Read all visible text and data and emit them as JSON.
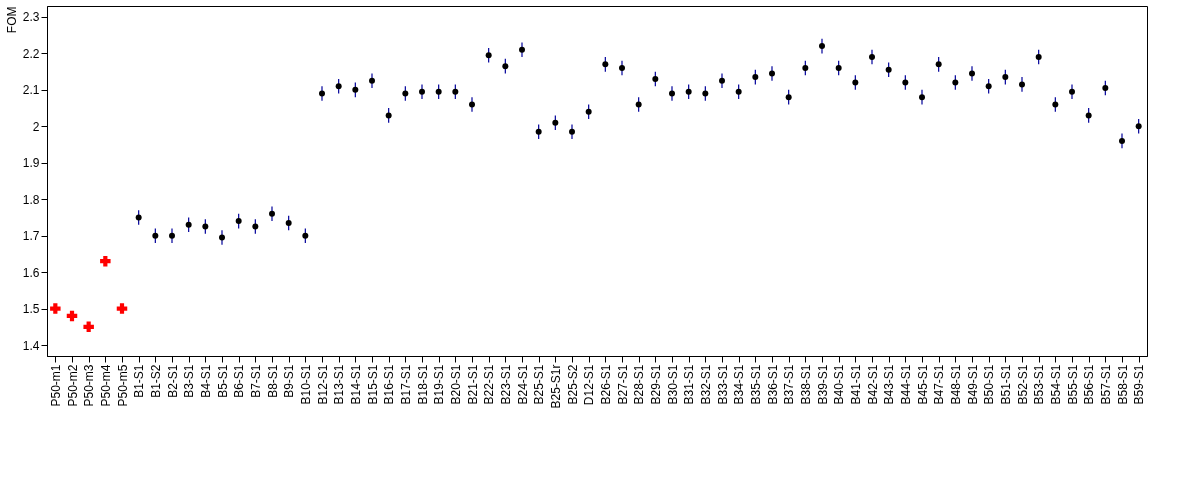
{
  "chart_data": {
    "type": "scatter",
    "ylabel": "FOM",
    "categories": [
      "P50-m1",
      "P50-m2",
      "P50-m3",
      "P50-m4",
      "P50-m5",
      "B1-S1",
      "B1-S2",
      "B2-S1",
      "B3-S1",
      "B4-S1",
      "B5-S1",
      "B6-S1",
      "B7-S1",
      "B8-S1",
      "B9-S1",
      "B10-S1",
      "B12-S1",
      "B13-S1",
      "B14-S1",
      "B15-S1",
      "B16-S1",
      "B17-S1",
      "B18-S1",
      "B19-S1",
      "B20-S1",
      "B21-S1",
      "B22-S1",
      "B23-S1",
      "B24-S1",
      "B25-S1",
      "B25-S1r",
      "B25-S2",
      "D12-S1",
      "B26-S1",
      "B27-S1",
      "B28-S1",
      "B29-S1",
      "B30-S1",
      "B31-S1",
      "B32-S1",
      "B33-S1",
      "B34-S1",
      "B35-S1",
      "B36-S1",
      "B37-S1",
      "B38-S1",
      "B39-S1",
      "B40-S1",
      "B41-S1",
      "B42-S1",
      "B43-S1",
      "B44-S1",
      "B45-S1",
      "B47-S1",
      "B48-S1",
      "B49-S1",
      "B50-S1",
      "B51-S1",
      "B52-S1",
      "B53-S1",
      "B54-S1",
      "B55-S1",
      "B56-S1",
      "B57-S1",
      "B58-S1",
      "B59-S1"
    ],
    "series": [
      {
        "color": "#ff0000",
        "marker": "cross",
        "values": [
          1.5,
          1.48,
          1.45,
          1.63,
          1.5,
          null,
          null,
          null,
          null,
          null,
          null,
          null,
          null,
          null,
          null,
          null,
          null,
          null,
          null,
          null,
          null,
          null,
          null,
          null,
          null,
          null,
          null,
          null,
          null,
          null,
          null,
          null,
          null,
          null,
          null,
          null,
          null,
          null,
          null,
          null,
          null,
          null,
          null,
          null,
          null,
          null,
          null,
          null,
          null,
          null,
          null,
          null,
          null,
          null,
          null,
          null,
          null,
          null,
          null,
          null,
          null,
          null,
          null,
          null,
          null,
          null
        ]
      },
      {
        "color": "#000000",
        "marker": "circle",
        "values": [
          null,
          null,
          null,
          null,
          null,
          1.75,
          1.7,
          1.7,
          1.73,
          1.725,
          1.695,
          1.74,
          1.725,
          1.76,
          1.735,
          1.7,
          2.09,
          2.11,
          2.1,
          2.125,
          2.03,
          2.09,
          2.095,
          2.095,
          2.095,
          2.06,
          2.195,
          2.165,
          2.21,
          1.985,
          2.01,
          1.985,
          2.04,
          2.17,
          2.16,
          2.06,
          2.13,
          2.09,
          2.095,
          2.09,
          2.125,
          2.095,
          2.135,
          2.145,
          2.08,
          2.16,
          2.22,
          2.16,
          2.12,
          2.19,
          2.155,
          2.12,
          2.08,
          2.17,
          2.12,
          2.145,
          2.11,
          2.135,
          2.115,
          2.19,
          2.06,
          2.095,
          2.03,
          2.105,
          1.96,
          2.0
        ],
        "errors": [
          null,
          null,
          null,
          null,
          null,
          0.02,
          0.02,
          0.02,
          0.02,
          0.02,
          0.02,
          0.02,
          0.02,
          0.02,
          0.02,
          0.02,
          0.02,
          0.02,
          0.02,
          0.02,
          0.02,
          0.02,
          0.02,
          0.02,
          0.02,
          0.02,
          0.02,
          0.02,
          0.02,
          0.02,
          0.02,
          0.02,
          0.02,
          0.02,
          0.02,
          0.02,
          0.02,
          0.02,
          0.02,
          0.02,
          0.02,
          0.02,
          0.02,
          0.02,
          0.02,
          0.02,
          0.02,
          0.02,
          0.02,
          0.02,
          0.02,
          0.02,
          0.02,
          0.02,
          0.02,
          0.02,
          0.02,
          0.02,
          0.02,
          0.02,
          0.02,
          0.02,
          0.02,
          0.02,
          0.02,
          0.02
        ]
      }
    ],
    "ylim": [
      1.37,
      2.33
    ],
    "yticks": [
      1.4,
      1.5,
      1.6,
      1.7,
      1.8,
      1.9,
      2,
      2.1,
      2.2,
      2.3
    ],
    "grid": false
  }
}
